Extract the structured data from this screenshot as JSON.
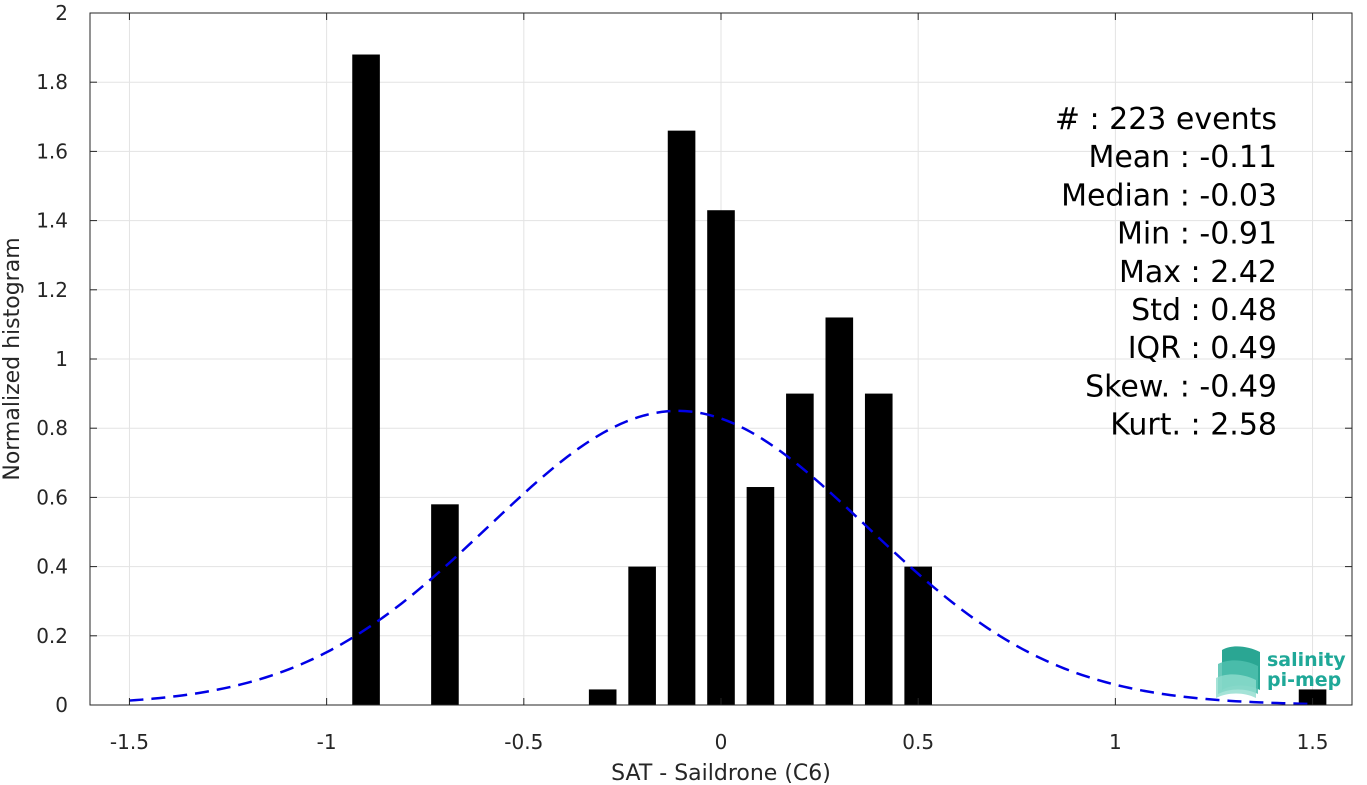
{
  "chart_data": {
    "type": "bar",
    "xlabel": "SAT - Saildrone (C6)",
    "ylabel": "Normalized histogram",
    "xlim": [
      -1.6,
      1.6
    ],
    "ylim": [
      0,
      2
    ],
    "x_ticks": [
      -1.5,
      -1,
      -0.5,
      0,
      0.5,
      1,
      1.5
    ],
    "x_tick_labels": [
      "-1.5",
      "-1",
      "-0.5",
      "0",
      "0.5",
      "1",
      "1.5"
    ],
    "y_ticks": [
      0,
      0.2,
      0.4,
      0.6,
      0.8,
      1,
      1.2,
      1.4,
      1.6,
      1.8,
      2
    ],
    "y_tick_labels": [
      "0",
      "0.2",
      "0.4",
      "0.6",
      "0.8",
      "1",
      "1.2",
      "1.4",
      "1.6",
      "1.8",
      "2"
    ],
    "grid": true,
    "bar_color": "#000000",
    "bar_width": 0.07,
    "bars": [
      {
        "x": -0.9,
        "value": 1.88
      },
      {
        "x": -0.7,
        "value": 0.58
      },
      {
        "x": -0.3,
        "value": 0.045
      },
      {
        "x": -0.2,
        "value": 0.4
      },
      {
        "x": -0.1,
        "value": 1.66
      },
      {
        "x": 0.0,
        "value": 1.43
      },
      {
        "x": 0.1,
        "value": 0.63
      },
      {
        "x": 0.2,
        "value": 0.9
      },
      {
        "x": 0.3,
        "value": 1.12
      },
      {
        "x": 0.4,
        "value": 0.9
      },
      {
        "x": 0.5,
        "value": 0.4
      },
      {
        "x": 1.5,
        "value": 0.045
      }
    ],
    "fit_curve": {
      "style": "dashed",
      "color": "#0000e6",
      "x_range": [
        -1.5,
        1.5
      ],
      "mean": -0.11,
      "std": 0.48,
      "peak": 0.85
    }
  },
  "stats": [
    "#  : 223 events",
    "Mean : -0.11",
    "Median : -0.03",
    "Min : -0.91",
    "Max : 2.42",
    "Std : 0.48",
    "IQR : 0.49",
    "Skew. : -0.49",
    "Kurt. : 2.58"
  ],
  "logo": {
    "line1": "salinity",
    "line2": "pi-mep",
    "color": "#1fa898"
  }
}
